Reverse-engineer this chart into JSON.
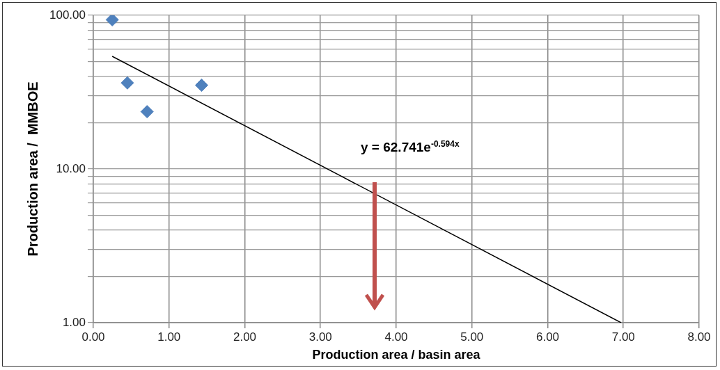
{
  "chart_data": {
    "type": "scatter",
    "xlabel": "Production area / basin area",
    "ylabel": "Production area /  MMBOE",
    "series": [
      {
        "color": "#4f81bd",
        "x": [
          0.25,
          0.45,
          0.71,
          1.43
        ],
        "values": [
          93.5,
          36.3,
          23.6,
          35.1
        ],
        "marker": "diamond"
      },
      {
        "type": "line",
        "color": "#000000",
        "x": [
          0.25,
          6.97
        ],
        "values": [
          54.1,
          1.0
        ],
        "marker": "none",
        "line_style": "solid"
      }
    ],
    "annotations": [
      "y = 62.741e$^{-0.594x}$"
    ],
    "log": "y",
    "grid": true,
    "legend": false,
    "xlim": [
      0,
      8
    ],
    "xticks": [
      {
        "value": 0,
        "label": "0.00"
      },
      {
        "value": 1,
        "label": "1.00"
      },
      {
        "value": 2,
        "label": "2.00"
      },
      {
        "value": 3,
        "label": "3.00"
      },
      {
        "value": 4,
        "label": "4.00"
      },
      {
        "value": 5,
        "label": "5.00"
      },
      {
        "value": 6,
        "label": "6.00"
      },
      {
        "value": 7,
        "label": "7.00"
      },
      {
        "value": 8,
        "label": "8.00"
      }
    ],
    "ylim": [
      1,
      100
    ],
    "yticks": [
      {
        "value": 1,
        "label": "1.00"
      },
      {
        "value": 2,
        "label": null
      },
      {
        "value": 3,
        "label": null
      },
      {
        "value": 4,
        "label": null
      },
      {
        "value": 5,
        "label": null
      },
      {
        "value": 6,
        "label": null
      },
      {
        "value": 7,
        "label": null
      },
      {
        "value": 8,
        "label": null
      },
      {
        "value": 9,
        "label": null
      },
      {
        "value": 10,
        "label": "10.00"
      },
      {
        "value": 20,
        "label": null
      },
      {
        "value": 30,
        "label": null
      },
      {
        "value": 40,
        "label": null
      },
      {
        "value": 50,
        "label": null
      },
      {
        "value": 60,
        "label": null
      },
      {
        "value": 70,
        "label": null
      },
      {
        "value": 80,
        "label": null
      },
      {
        "value": 90,
        "label": null
      },
      {
        "value": 100,
        "label": "100.00"
      }
    ]
  }
}
